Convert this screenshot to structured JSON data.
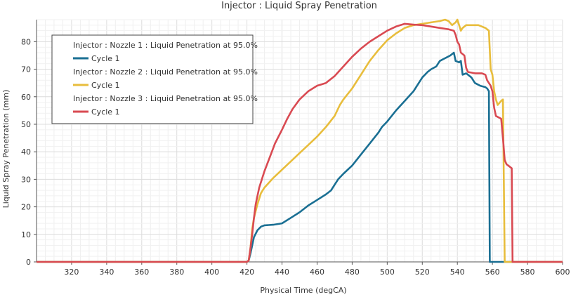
{
  "chart_data": {
    "type": "line",
    "title": "Injector : Liquid Spray Penetration",
    "xlabel": "Physical Time (degCA)",
    "ylabel": "Liquid Spray Penetration (mm)",
    "xlim": [
      300,
      600
    ],
    "ylim": [
      0,
      88
    ],
    "xticks": [
      320,
      340,
      360,
      380,
      400,
      420,
      440,
      460,
      480,
      500,
      520,
      540,
      560,
      580,
      600
    ],
    "yticks": [
      0,
      10,
      20,
      30,
      40,
      50,
      60,
      70,
      80
    ],
    "grid": true,
    "legend_position": "top-left",
    "legend": [
      {
        "group": "Injector : Nozzle 1 : Liquid Penetration at 95.0%",
        "label": "Cycle 1",
        "color": "#1a6f93"
      },
      {
        "group": "Injector : Nozzle 2 : Liquid Penetration at 95.0%",
        "label": "Cycle 1",
        "color": "#e8bd3c"
      },
      {
        "group": "Injector : Nozzle 3 : Liquid Penetration at 95.0%",
        "label": "Cycle 1",
        "color": "#d94a52"
      }
    ],
    "series": [
      {
        "color": "#1a6f93",
        "points": [
          [
            300,
            0
          ],
          [
            420,
            0
          ],
          [
            421,
            0.5
          ],
          [
            422,
            3
          ],
          [
            423,
            6
          ],
          [
            424,
            9
          ],
          [
            426,
            11.5
          ],
          [
            428,
            12.8
          ],
          [
            430,
            13.3
          ],
          [
            435,
            13.5
          ],
          [
            440,
            14
          ],
          [
            445,
            16
          ],
          [
            450,
            18
          ],
          [
            455,
            20.5
          ],
          [
            460,
            22.5
          ],
          [
            465,
            24.5
          ],
          [
            468,
            26
          ],
          [
            470,
            28
          ],
          [
            472,
            30
          ],
          [
            475,
            32
          ],
          [
            480,
            35
          ],
          [
            485,
            39
          ],
          [
            490,
            43
          ],
          [
            495,
            47
          ],
          [
            497,
            49
          ],
          [
            500,
            51
          ],
          [
            505,
            55
          ],
          [
            510,
            58.5
          ],
          [
            515,
            62
          ],
          [
            520,
            67
          ],
          [
            523,
            69
          ],
          [
            525,
            70
          ],
          [
            528,
            71
          ],
          [
            530,
            73
          ],
          [
            533,
            74
          ],
          [
            536,
            75
          ],
          [
            538,
            76
          ],
          [
            539,
            73
          ],
          [
            541,
            72.5
          ],
          [
            542,
            73
          ],
          [
            543,
            68
          ],
          [
            545,
            68.5
          ],
          [
            548,
            67
          ],
          [
            550,
            65
          ],
          [
            553,
            64
          ],
          [
            556,
            63.5
          ],
          [
            557,
            63
          ],
          [
            558,
            62
          ],
          [
            558.5,
            0
          ],
          [
            600,
            0
          ]
        ]
      },
      {
        "color": "#e8bd3c",
        "points": [
          [
            300,
            0
          ],
          [
            420,
            0
          ],
          [
            421,
            0.5
          ],
          [
            422,
            5
          ],
          [
            423,
            12
          ],
          [
            424,
            16
          ],
          [
            426,
            21
          ],
          [
            428,
            25
          ],
          [
            430,
            27
          ],
          [
            435,
            30.5
          ],
          [
            440,
            33.5
          ],
          [
            445,
            36.5
          ],
          [
            450,
            39.5
          ],
          [
            455,
            42.5
          ],
          [
            460,
            45.5
          ],
          [
            465,
            49
          ],
          [
            470,
            53
          ],
          [
            473,
            57
          ],
          [
            475,
            59
          ],
          [
            480,
            63
          ],
          [
            485,
            68
          ],
          [
            490,
            73
          ],
          [
            495,
            77
          ],
          [
            500,
            80.5
          ],
          [
            505,
            83
          ],
          [
            510,
            85
          ],
          [
            515,
            86
          ],
          [
            520,
            86.5
          ],
          [
            525,
            87
          ],
          [
            530,
            87.5
          ],
          [
            533,
            88
          ],
          [
            535,
            87.5
          ],
          [
            537,
            86
          ],
          [
            539,
            87
          ],
          [
            540,
            88
          ],
          [
            541,
            86
          ],
          [
            542,
            84
          ],
          [
            543,
            85
          ],
          [
            545,
            86
          ],
          [
            548,
            86
          ],
          [
            552,
            86
          ],
          [
            556,
            85
          ],
          [
            558,
            84
          ],
          [
            559,
            70
          ],
          [
            560,
            68
          ],
          [
            561,
            62
          ],
          [
            562,
            59
          ],
          [
            563,
            57
          ],
          [
            565,
            58.5
          ],
          [
            566,
            59
          ],
          [
            567,
            0
          ],
          [
            600,
            0
          ]
        ]
      },
      {
        "color": "#d94a52",
        "points": [
          [
            300,
            0
          ],
          [
            420,
            0
          ],
          [
            421,
            0.5
          ],
          [
            422,
            5
          ],
          [
            423,
            10
          ],
          [
            424,
            16
          ],
          [
            425,
            21
          ],
          [
            427,
            27
          ],
          [
            430,
            33
          ],
          [
            433,
            38
          ],
          [
            436,
            43
          ],
          [
            440,
            48
          ],
          [
            443,
            52
          ],
          [
            446,
            55.5
          ],
          [
            450,
            59
          ],
          [
            455,
            62
          ],
          [
            460,
            64
          ],
          [
            465,
            65
          ],
          [
            470,
            67.5
          ],
          [
            475,
            71
          ],
          [
            480,
            74.5
          ],
          [
            485,
            77.5
          ],
          [
            490,
            80
          ],
          [
            495,
            82
          ],
          [
            500,
            84
          ],
          [
            505,
            85.5
          ],
          [
            510,
            86.5
          ],
          [
            515,
            86.2
          ],
          [
            520,
            86
          ],
          [
            525,
            85.5
          ],
          [
            530,
            85
          ],
          [
            535,
            84.5
          ],
          [
            538,
            84
          ],
          [
            539,
            82.5
          ],
          [
            540,
            80
          ],
          [
            541,
            79
          ],
          [
            542,
            76
          ],
          [
            544,
            75
          ],
          [
            545,
            70.5
          ],
          [
            546,
            69
          ],
          [
            550,
            68.5
          ],
          [
            554,
            68.5
          ],
          [
            556,
            68
          ],
          [
            557,
            66
          ],
          [
            559,
            64
          ],
          [
            560,
            62
          ],
          [
            561,
            56
          ],
          [
            562,
            53
          ],
          [
            565,
            52
          ],
          [
            566,
            45
          ],
          [
            567,
            37
          ],
          [
            568,
            35.5
          ],
          [
            570,
            34.5
          ],
          [
            571,
            34
          ],
          [
            571.5,
            0
          ],
          [
            600,
            0
          ]
        ]
      }
    ]
  }
}
